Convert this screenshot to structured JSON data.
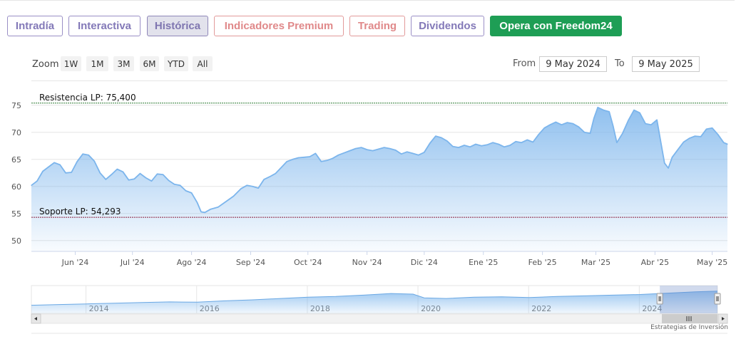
{
  "tabs": [
    {
      "label": "Intradía",
      "style": "purple"
    },
    {
      "label": "Interactiva",
      "style": "purple"
    },
    {
      "label": "Histórica",
      "style": "active"
    },
    {
      "label": "Indicadores Premium",
      "style": "pink"
    },
    {
      "label": "Trading",
      "style": "pink"
    },
    {
      "label": "Dividendos",
      "style": "purple"
    },
    {
      "label": "Opera con Freedom24",
      "style": "green"
    }
  ],
  "zoom": {
    "label": "Zoom",
    "buttons": [
      "1W",
      "1M",
      "3M",
      "6M",
      "YTD",
      "All"
    ]
  },
  "range": {
    "from_label": "From",
    "from_value": "9 May 2024",
    "to_label": "To",
    "to_value": "9 May 2025"
  },
  "credit": "Estrategias de Inversión",
  "colors": {
    "line": "#7cb5ec",
    "resistance": "#2e7d32",
    "support": "#8b1a3a",
    "tab_purple": "#8379b8",
    "tab_pink": "#e0898a",
    "tab_green": "#1e9e55"
  },
  "chart_data": [
    {
      "type": "area",
      "y_ticks": [
        50,
        55,
        60,
        65,
        70,
        75
      ],
      "ylim": [
        48,
        78
      ],
      "xlim": [
        "2024-05-09",
        "2025-05-09"
      ],
      "x_tick_labels": [
        {
          "date": "2024-06-01",
          "label": "Jun '24"
        },
        {
          "date": "2024-07-01",
          "label": "Jul '24"
        },
        {
          "date": "2024-08-01",
          "label": "Ago '24"
        },
        {
          "date": "2024-09-01",
          "label": "Sep '24"
        },
        {
          "date": "2024-10-01",
          "label": "Oct '24"
        },
        {
          "date": "2024-11-01",
          "label": "Nov '24"
        },
        {
          "date": "2024-12-01",
          "label": "Dic '24"
        },
        {
          "date": "2025-01-01",
          "label": "Ene '25"
        },
        {
          "date": "2025-02-01",
          "label": "Feb '25"
        },
        {
          "date": "2025-03-01",
          "label": "Mar '25"
        },
        {
          "date": "2025-04-01",
          "label": "Abr '25"
        },
        {
          "date": "2025-05-01",
          "label": "May '25"
        }
      ],
      "grid": true,
      "plot_lines": [
        {
          "label": "Resistencia LP: 75,400",
          "value": 75.4
        },
        {
          "label": "Soporte LP: 54,293",
          "value": 54.293
        }
      ],
      "series": [
        {
          "points": [
            [
              "2024-05-09",
              60.2
            ],
            [
              "2024-05-12",
              61.0
            ],
            [
              "2024-05-15",
              62.8
            ],
            [
              "2024-05-18",
              63.6
            ],
            [
              "2024-05-21",
              64.4
            ],
            [
              "2024-05-24",
              64.0
            ],
            [
              "2024-05-27",
              62.5
            ],
            [
              "2024-05-30",
              62.6
            ],
            [
              "2024-06-02",
              64.6
            ],
            [
              "2024-06-05",
              66.0
            ],
            [
              "2024-06-08",
              65.8
            ],
            [
              "2024-06-11",
              64.7
            ],
            [
              "2024-06-14",
              62.5
            ],
            [
              "2024-06-17",
              61.3
            ],
            [
              "2024-06-20",
              62.2
            ],
            [
              "2024-06-23",
              63.2
            ],
            [
              "2024-06-26",
              62.7
            ],
            [
              "2024-06-29",
              61.2
            ],
            [
              "2024-07-02",
              61.4
            ],
            [
              "2024-07-05",
              62.4
            ],
            [
              "2024-07-08",
              61.6
            ],
            [
              "2024-07-11",
              61.0
            ],
            [
              "2024-07-14",
              62.3
            ],
            [
              "2024-07-17",
              62.2
            ],
            [
              "2024-07-20",
              61.1
            ],
            [
              "2024-07-23",
              60.4
            ],
            [
              "2024-07-26",
              60.2
            ],
            [
              "2024-07-29",
              59.2
            ],
            [
              "2024-08-01",
              58.8
            ],
            [
              "2024-08-04",
              57.0
            ],
            [
              "2024-08-06",
              55.3
            ],
            [
              "2024-08-08",
              55.2
            ],
            [
              "2024-08-11",
              55.8
            ],
            [
              "2024-08-15",
              56.2
            ],
            [
              "2024-08-19",
              57.2
            ],
            [
              "2024-08-23",
              58.2
            ],
            [
              "2024-08-27",
              59.6
            ],
            [
              "2024-08-30",
              60.2
            ],
            [
              "2024-09-02",
              60.0
            ],
            [
              "2024-09-05",
              59.7
            ],
            [
              "2024-09-08",
              61.3
            ],
            [
              "2024-09-11",
              61.8
            ],
            [
              "2024-09-14",
              62.4
            ],
            [
              "2024-09-17",
              63.5
            ],
            [
              "2024-09-20",
              64.6
            ],
            [
              "2024-09-23",
              65.0
            ],
            [
              "2024-09-26",
              65.3
            ],
            [
              "2024-09-29",
              65.4
            ],
            [
              "2024-10-02",
              65.5
            ],
            [
              "2024-10-05",
              66.1
            ],
            [
              "2024-10-08",
              64.6
            ],
            [
              "2024-10-11",
              64.8
            ],
            [
              "2024-10-14",
              65.2
            ],
            [
              "2024-10-17",
              65.8
            ],
            [
              "2024-10-20",
              66.2
            ],
            [
              "2024-10-23",
              66.6
            ],
            [
              "2024-10-26",
              67.0
            ],
            [
              "2024-10-29",
              67.2
            ],
            [
              "2024-11-01",
              66.8
            ],
            [
              "2024-11-04",
              66.6
            ],
            [
              "2024-11-07",
              66.9
            ],
            [
              "2024-11-10",
              67.2
            ],
            [
              "2024-11-13",
              67.0
            ],
            [
              "2024-11-16",
              66.7
            ],
            [
              "2024-11-19",
              66.0
            ],
            [
              "2024-11-22",
              66.4
            ],
            [
              "2024-11-25",
              66.1
            ],
            [
              "2024-11-28",
              65.8
            ],
            [
              "2024-12-01",
              66.3
            ],
            [
              "2024-12-04",
              68.0
            ],
            [
              "2024-12-07",
              69.3
            ],
            [
              "2024-12-10",
              69.0
            ],
            [
              "2024-12-13",
              68.4
            ],
            [
              "2024-12-16",
              67.4
            ],
            [
              "2024-12-19",
              67.2
            ],
            [
              "2024-12-22",
              67.6
            ],
            [
              "2024-12-25",
              67.3
            ],
            [
              "2024-12-28",
              67.8
            ],
            [
              "2024-12-31",
              67.5
            ],
            [
              "2025-01-03",
              67.7
            ],
            [
              "2025-01-06",
              68.1
            ],
            [
              "2025-01-09",
              67.8
            ],
            [
              "2025-01-12",
              67.3
            ],
            [
              "2025-01-15",
              67.6
            ],
            [
              "2025-01-18",
              68.3
            ],
            [
              "2025-01-21",
              68.1
            ],
            [
              "2025-01-24",
              68.6
            ],
            [
              "2025-01-27",
              68.2
            ],
            [
              "2025-01-30",
              69.6
            ],
            [
              "2025-02-02",
              70.8
            ],
            [
              "2025-02-05",
              71.4
            ],
            [
              "2025-02-08",
              71.9
            ],
            [
              "2025-02-11",
              71.4
            ],
            [
              "2025-02-14",
              71.8
            ],
            [
              "2025-02-17",
              71.6
            ],
            [
              "2025-02-20",
              71.0
            ],
            [
              "2025-02-23",
              70.0
            ],
            [
              "2025-02-26",
              69.8
            ],
            [
              "2025-02-28",
              72.6
            ],
            [
              "2025-03-02",
              74.6
            ],
            [
              "2025-03-05",
              74.1
            ],
            [
              "2025-03-08",
              73.8
            ],
            [
              "2025-03-10",
              71.2
            ],
            [
              "2025-03-12",
              68.1
            ],
            [
              "2025-03-15",
              69.8
            ],
            [
              "2025-03-18",
              72.2
            ],
            [
              "2025-03-21",
              74.1
            ],
            [
              "2025-03-24",
              73.6
            ],
            [
              "2025-03-27",
              71.6
            ],
            [
              "2025-03-30",
              71.4
            ],
            [
              "2025-04-02",
              72.3
            ],
            [
              "2025-04-04",
              68.3
            ],
            [
              "2025-04-06",
              64.3
            ],
            [
              "2025-04-08",
              63.4
            ],
            [
              "2025-04-10",
              65.4
            ],
            [
              "2025-04-13",
              66.8
            ],
            [
              "2025-04-16",
              68.2
            ],
            [
              "2025-04-19",
              68.9
            ],
            [
              "2025-04-22",
              69.3
            ],
            [
              "2025-04-25",
              69.2
            ],
            [
              "2025-04-28",
              70.6
            ],
            [
              "2025-05-01",
              70.8
            ],
            [
              "2025-05-04",
              69.6
            ],
            [
              "2025-05-07",
              68.1
            ],
            [
              "2025-05-09",
              67.8
            ]
          ]
        }
      ]
    },
    {
      "type": "area",
      "x_tick_labels": [
        "2014",
        "2016",
        "2018",
        "2020",
        "2022",
        "2024"
      ],
      "series": [
        {
          "points": [
            [
              2013.0,
              20
            ],
            [
              2013.5,
              22
            ],
            [
              2014.0,
              24
            ],
            [
              2014.5,
              26
            ],
            [
              2015.0,
              28
            ],
            [
              2015.5,
              30
            ],
            [
              2016.0,
              29
            ],
            [
              2016.5,
              33
            ],
            [
              2017.0,
              36
            ],
            [
              2017.5,
              40
            ],
            [
              2018.0,
              44
            ],
            [
              2018.5,
              46
            ],
            [
              2019.0,
              50
            ],
            [
              2019.5,
              55
            ],
            [
              2019.9,
              53
            ],
            [
              2020.1,
              42
            ],
            [
              2020.5,
              40
            ],
            [
              2021.0,
              44
            ],
            [
              2021.5,
              45
            ],
            [
              2022.0,
              43
            ],
            [
              2022.5,
              46
            ],
            [
              2023.0,
              48
            ],
            [
              2023.5,
              50
            ],
            [
              2024.0,
              52
            ],
            [
              2024.5,
              56
            ],
            [
              2025.0,
              60
            ],
            [
              2025.4,
              62
            ]
          ]
        }
      ],
      "selected_range": [
        "2024-05-09",
        "2025-05-09"
      ]
    }
  ]
}
